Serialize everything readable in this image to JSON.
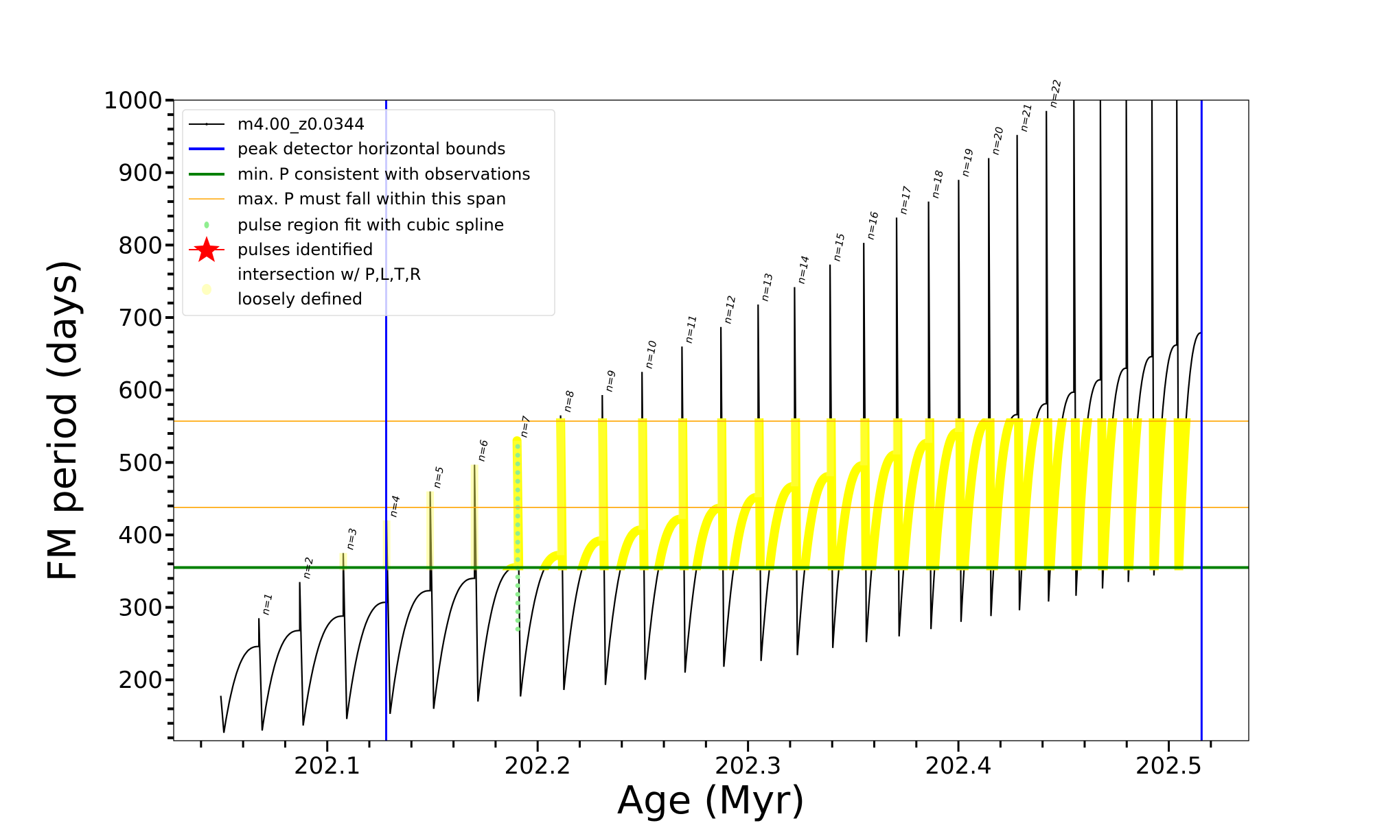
{
  "chart_data": {
    "type": "line",
    "title": "",
    "xlabel": "Age (Myr)",
    "ylabel": "FM period (days)",
    "xlim": [
      202.027,
      202.538
    ],
    "ylim": [
      116,
      1000
    ],
    "xticks": [
      202.1,
      202.2,
      202.3,
      202.4,
      202.5
    ],
    "xtick_labels": [
      "202.1",
      "202.2",
      "202.3",
      "202.4",
      "202.5"
    ],
    "yticks": [
      200,
      300,
      400,
      500,
      600,
      700,
      800,
      900,
      1000
    ],
    "ytick_labels": [
      "200",
      "300",
      "400",
      "500",
      "600",
      "700",
      "800",
      "900",
      "1000"
    ],
    "grid": false,
    "legend_placement": "top-left",
    "legend": [
      {
        "label": "m4.00_z0.0344",
        "color": "#000000",
        "kind": "line-marker"
      },
      {
        "label": "peak detector horizontal bounds",
        "color": "#0000ff",
        "kind": "line"
      },
      {
        "label": "min. P consistent with observations",
        "color": "#008000",
        "kind": "line"
      },
      {
        "label": "max. P must fall within this span",
        "color": "#ffa500",
        "kind": "thin-line"
      },
      {
        "label": "pulse region fit with cubic spline",
        "color": "#90ee90",
        "kind": "dot"
      },
      {
        "label": "pulses identified",
        "color": "#ff0000",
        "kind": "star"
      },
      {
        "label": "intersection w/ P,L,T,R",
        "label2": "loosely defined",
        "color": "#ffffc0",
        "kind": "circle"
      }
    ],
    "vertical_lines": {
      "name": "peak detector horizontal bounds",
      "x": [
        202.128,
        202.5156
      ],
      "color": "#0000ff"
    },
    "min_P": {
      "y": 355,
      "color": "#008000"
    },
    "max_P_span": {
      "y": [
        438,
        557
      ],
      "color": "#ffa500"
    },
    "series": {
      "name": "m4.00_z0.0344",
      "start_age": 202.0494,
      "start_value": 178,
      "cycle_boundaries": [
        202.0494,
        202.0675,
        202.0869,
        202.1076,
        202.1282,
        202.1489,
        202.17,
        202.1902,
        202.2109,
        202.2307,
        202.2496,
        202.2686,
        202.2871,
        202.3048,
        202.3221,
        202.339,
        202.355,
        202.3706,
        202.3858,
        202.4001,
        202.4144,
        202.4279,
        202.4418,
        202.4549,
        202.4675,
        202.4798,
        202.492,
        202.5038,
        202.5156
      ],
      "cycle_minima": [
        127,
        130,
        137,
        146,
        153,
        160,
        170,
        177,
        186,
        193,
        200,
        210,
        218,
        226,
        234,
        244,
        252,
        260,
        270,
        280,
        288,
        296,
        308,
        316,
        326,
        335,
        344,
        352
      ],
      "cycle_peaks": [
        246,
        268,
        288,
        307,
        323,
        340,
        355,
        372,
        392,
        407,
        422,
        437,
        452,
        467,
        481,
        496,
        511,
        527,
        542,
        557,
        566,
        581,
        597,
        614,
        630,
        646,
        662,
        679
      ],
      "spike_tops": [
        null,
        285,
        335,
        375,
        420,
        460,
        497,
        530,
        565,
        593,
        625,
        660,
        687,
        718,
        742,
        773,
        803,
        838,
        860,
        890,
        920,
        952,
        985,
        1000,
        1000,
        1000,
        1000,
        1000
      ]
    },
    "pulse_labels": [
      "n=1",
      "n=2",
      "n=3",
      "n=4",
      "n=5",
      "n=6",
      "n=7",
      "n=8",
      "n=9",
      "n=10",
      "n=11",
      "n=12",
      "n=13",
      "n=14",
      "n=15",
      "n=16",
      "n=17",
      "n=18",
      "n=19",
      "n=20",
      "n=21",
      "n=22"
    ],
    "spline_fit_pulse": {
      "label": "n=7",
      "range": [
        270,
        530
      ]
    },
    "intersection_range": [
      355,
      557
    ]
  }
}
